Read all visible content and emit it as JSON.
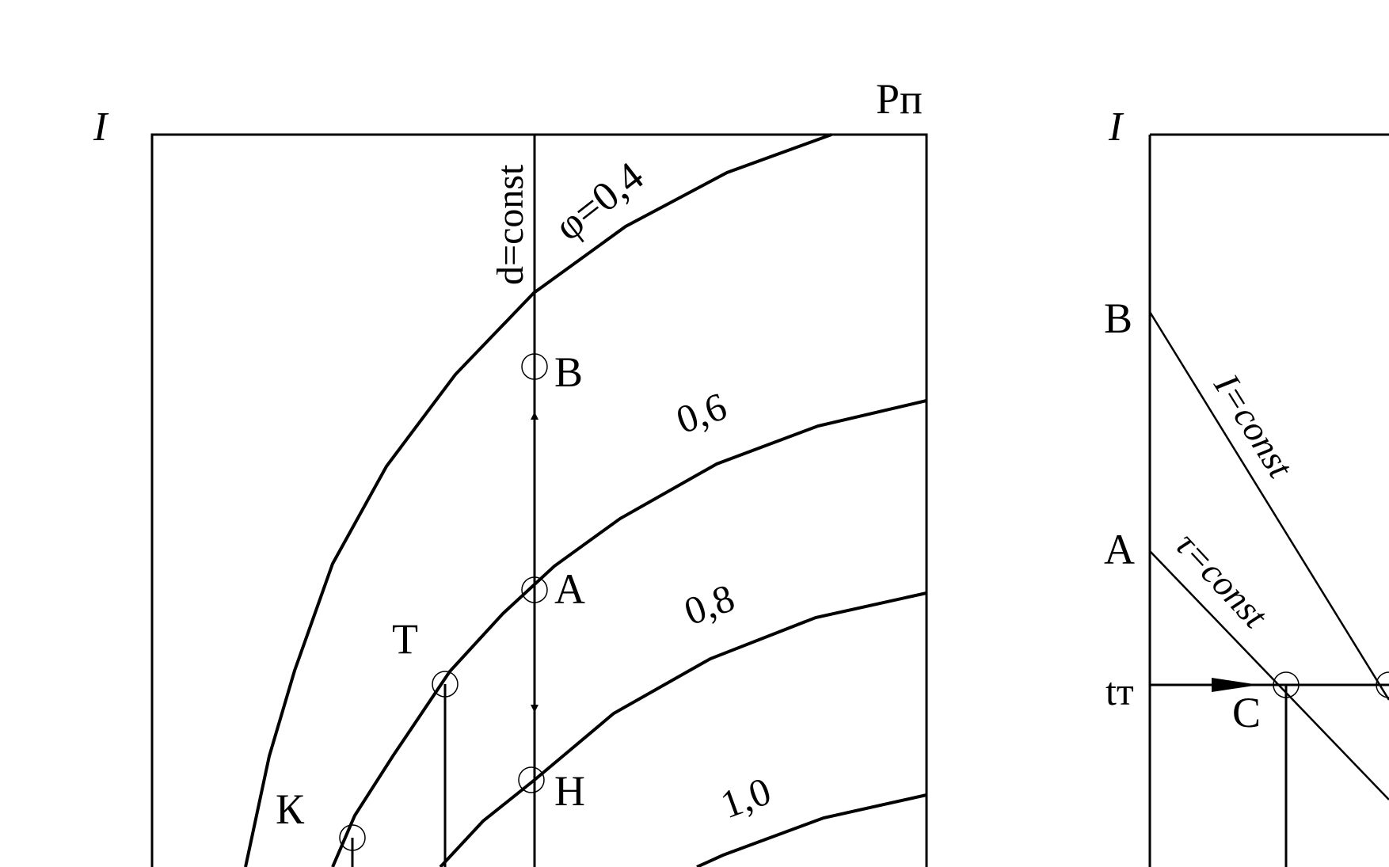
{
  "left_panel": {
    "axis_label": "I",
    "pressure_label": "Pп",
    "dconst_label": "d=const",
    "curves": [
      {
        "label": "φ=0,4"
      },
      {
        "label": "0,6"
      },
      {
        "label": "0,8"
      },
      {
        "label": "1,0"
      }
    ],
    "points": {
      "B": "В",
      "A": "А",
      "H": "Н",
      "T": "Т",
      "K": "К"
    }
  },
  "right_panel": {
    "axis_label": "I",
    "B_label": "В",
    "A_label": "А",
    "t_label": "tт",
    "C_label": "С",
    "iconst_label": "I=const",
    "tauconst_label": "τ=const"
  }
}
